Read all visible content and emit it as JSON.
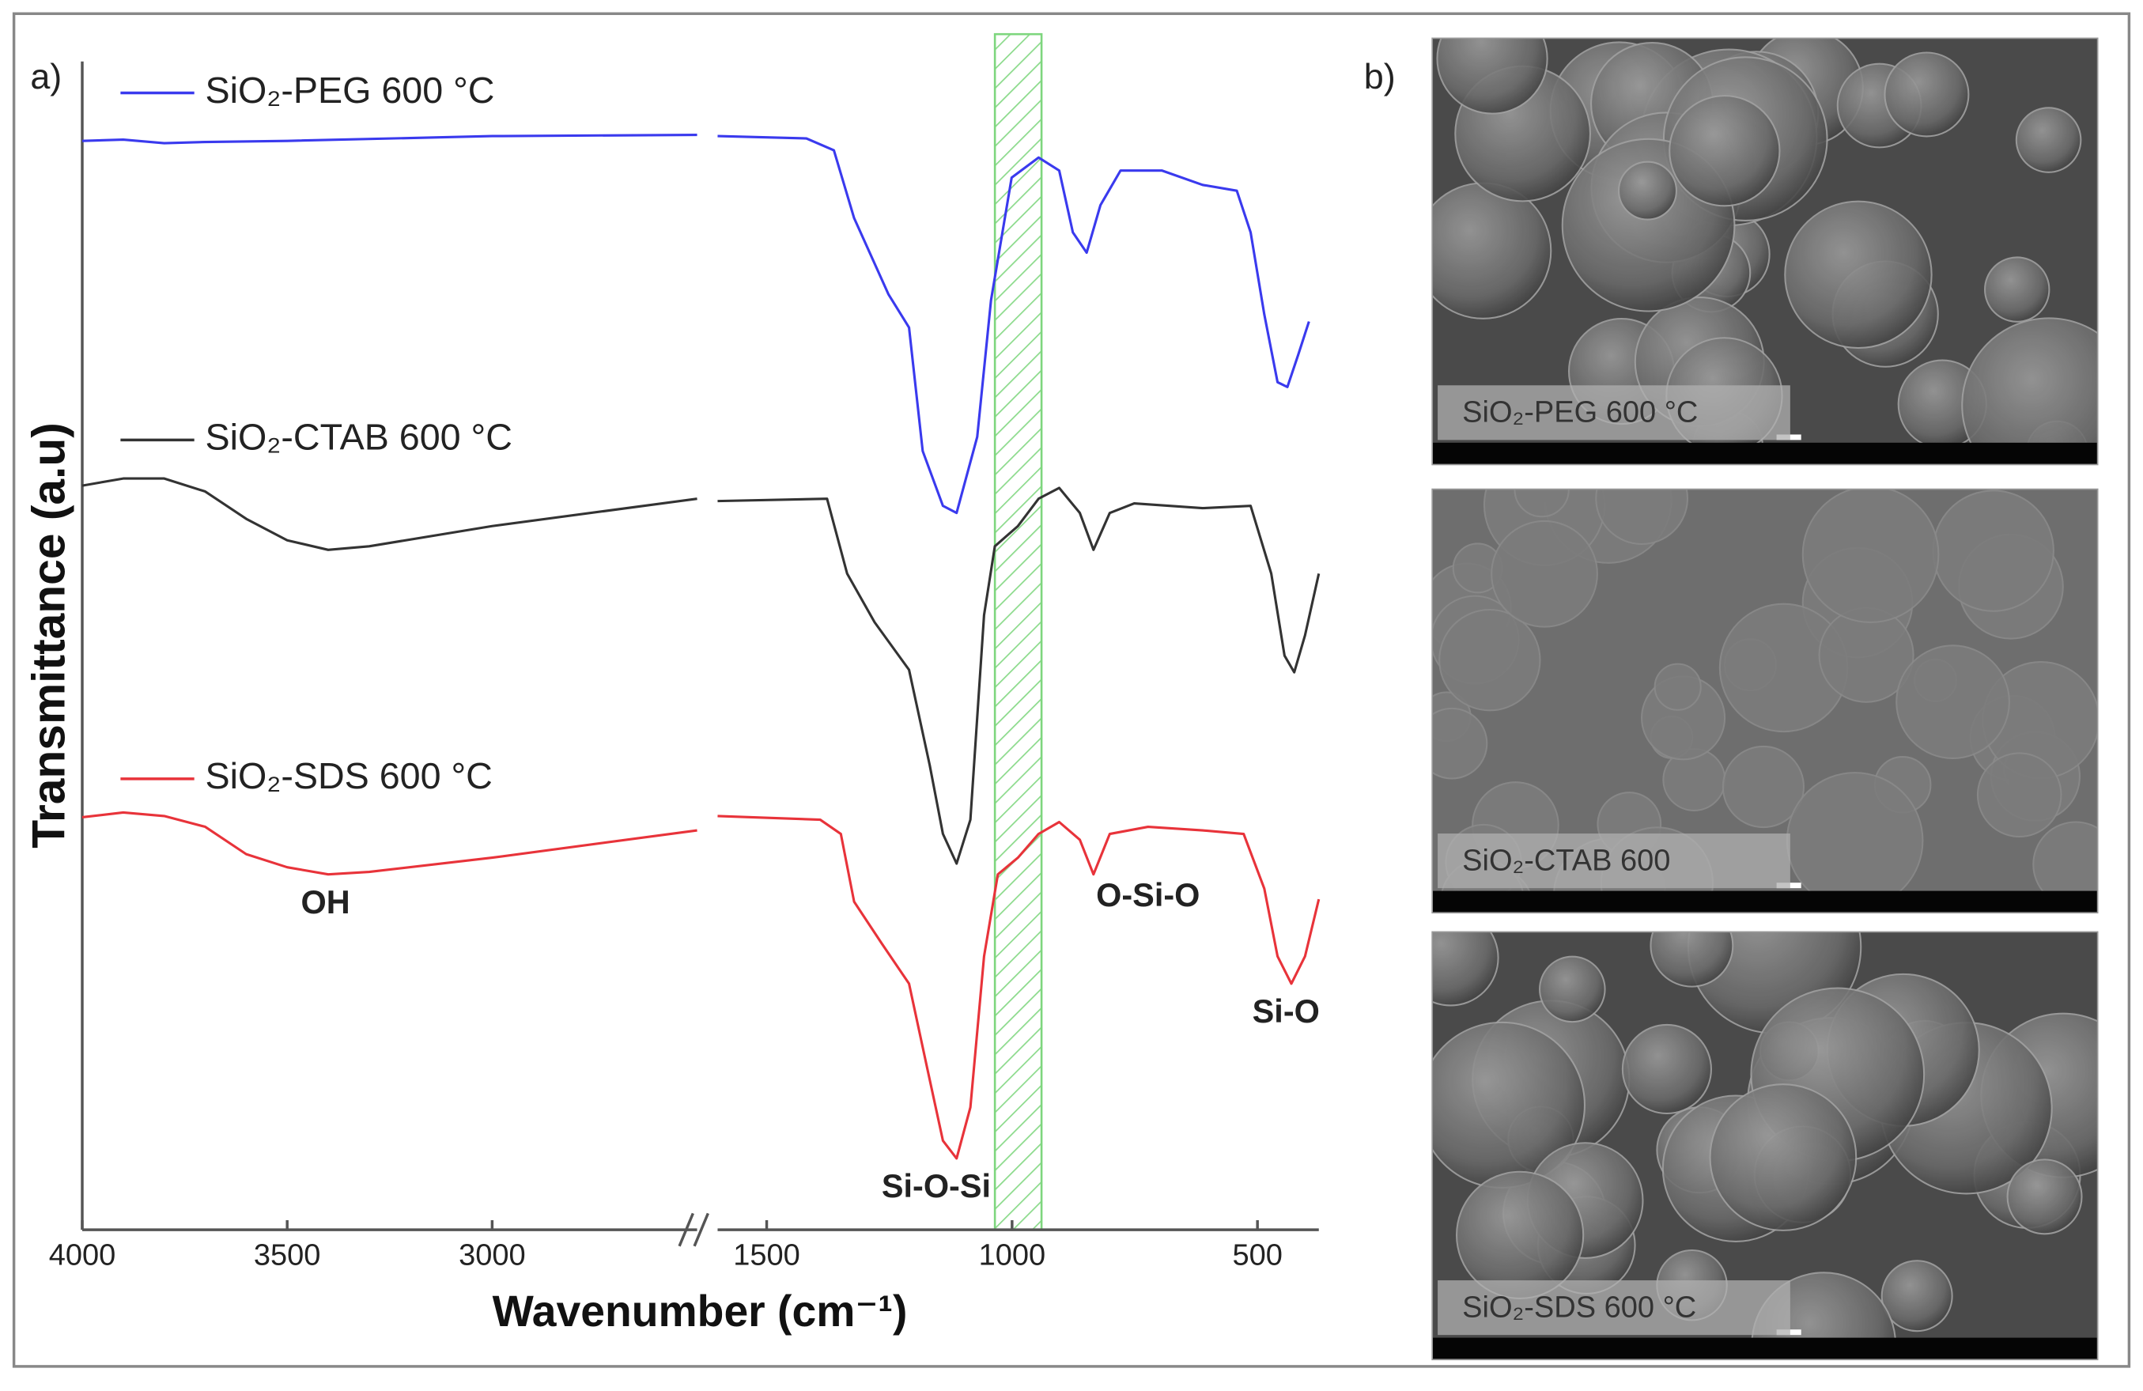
{
  "panel_labels": [
    "a)",
    "b)"
  ],
  "chart_data": {
    "type": "line",
    "ylabel": "Transmittance (a.u)",
    "xlabel": "Wavenumber (cm⁻¹)",
    "ylim": [
      0,
      100
    ],
    "x_segments": [
      {
        "xlim": [
          4000,
          2500
        ],
        "xticks": [
          4000,
          3500,
          3000
        ]
      },
      {
        "xlim": [
          1600,
          375
        ],
        "xticks": [
          1500,
          1000,
          500
        ]
      }
    ],
    "shaded_region": {
      "xlim": [
        1035,
        940
      ],
      "color": "#7ed67e"
    },
    "annotations": [
      "OH",
      "Si-O-Si",
      "O-Si-O",
      "Si-O"
    ],
    "series": [
      {
        "name": "SiO₂-PEG 600 °C",
        "color": "#3a3aee",
        "x": [
          4000,
          3900,
          3800,
          3700,
          3500,
          3000,
          2500,
          2000,
          1600,
          1419,
          1363,
          1322,
          1252,
          1210,
          1182,
          1141,
          1113,
          1071,
          1043,
          1001,
          946,
          904,
          876,
          848,
          820,
          779,
          695,
          612,
          542,
          514,
          486,
          459,
          439,
          417,
          395
        ],
        "values": [
          91.6,
          91.7,
          91.4,
          91.5,
          91.6,
          92.0,
          92.1,
          null,
          92.0,
          91.8,
          90.8,
          85.1,
          78.7,
          75.9,
          65.5,
          60.9,
          60.3,
          66.7,
          78.2,
          88.5,
          90.2,
          89.1,
          83.9,
          82.2,
          86.2,
          89.1,
          89.1,
          87.9,
          87.4,
          83.9,
          77.0,
          71.3,
          70.9,
          73.6,
          76.4
        ]
      },
      {
        "name": "SiO₂-CTAB 600 °C",
        "color": "#333333",
        "x": [
          4000,
          3900,
          3800,
          3700,
          3600,
          3500,
          3400,
          3300,
          3000,
          2500,
          2000,
          1600,
          1377,
          1336,
          1280,
          1210,
          1168,
          1141,
          1113,
          1085,
          1057,
          1035,
          988,
          946,
          904,
          862,
          834,
          801,
          751,
          612,
          514,
          472,
          445,
          425,
          403,
          375
        ],
        "values": [
          62.6,
          63.2,
          63.2,
          62.1,
          59.8,
          58.0,
          57.2,
          57.5,
          59.2,
          61.5,
          null,
          61.3,
          61.5,
          55.2,
          51.1,
          47.1,
          39.1,
          33.3,
          30.8,
          34.5,
          51.7,
          57.5,
          59.2,
          61.5,
          62.4,
          60.3,
          57.2,
          60.3,
          61.1,
          60.7,
          60.9,
          55.2,
          48.3,
          46.9,
          50.0,
          55.2
        ]
      },
      {
        "name": "SiO₂-SDS 600 °C",
        "color": "#e8333a",
        "x": [
          4000,
          3900,
          3800,
          3700,
          3600,
          3500,
          3400,
          3300,
          3000,
          2500,
          2000,
          1600,
          1391,
          1349,
          1322,
          1266,
          1210,
          1174,
          1141,
          1113,
          1085,
          1057,
          1029,
          988,
          946,
          904,
          862,
          834,
          801,
          723,
          612,
          528,
          486,
          459,
          431,
          403,
          375
        ],
        "values": [
          34.7,
          35.1,
          34.8,
          33.9,
          31.6,
          30.5,
          29.9,
          30.1,
          31.3,
          33.6,
          null,
          34.8,
          34.5,
          33.3,
          27.6,
          24.1,
          20.7,
          13.8,
          7.5,
          6.0,
          10.3,
          23.0,
          29.9,
          31.3,
          33.3,
          34.3,
          32.8,
          29.9,
          33.3,
          33.9,
          33.6,
          33.3,
          28.7,
          23.0,
          20.7,
          23.0,
          27.8
        ]
      }
    ]
  },
  "sem_images": [
    {
      "label": "SiO₂-PEG 600 °C"
    },
    {
      "label": "SiO₂-CTAB 600"
    },
    {
      "label": "SiO₂-SDS 600 °C"
    }
  ]
}
